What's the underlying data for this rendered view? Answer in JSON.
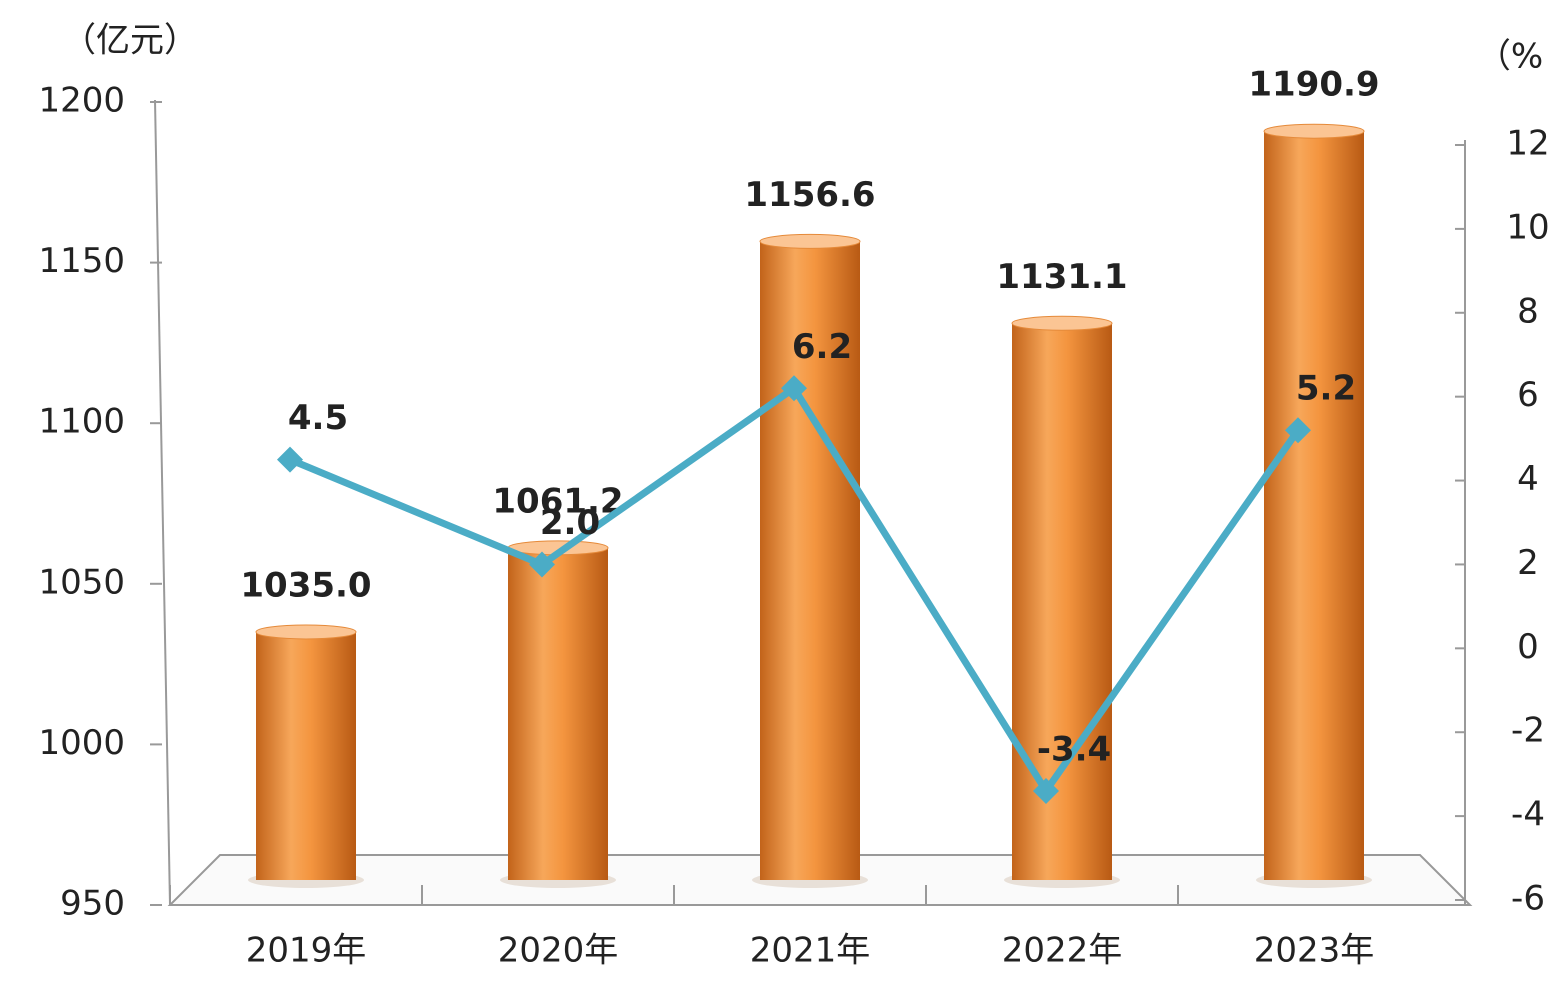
{
  "chart_data": {
    "type": "bar",
    "y_label": "（亿元）",
    "y2_label": "（%",
    "categories": [
      "2019年",
      "2020年",
      "2021年",
      "2022年",
      "2023年"
    ],
    "series": [
      {
        "color": "#f0903a",
        "values": [
          1035.0,
          1061.2,
          1156.6,
          1131.1,
          1190.9
        ],
        "value_labels": [
          "1035.0",
          "1061.2",
          "1156.6",
          "1131.1",
          "1190.9"
        ]
      },
      {
        "type": "line",
        "axis": "y2",
        "color": "#4bacc6",
        "values": [
          4.5,
          2.0,
          6.2,
          -3.4,
          5.2
        ],
        "value_labels": [
          "4.5",
          "2.0",
          "6.2",
          "-3.4",
          "5.2"
        ]
      }
    ],
    "ylim": [
      950,
      1200
    ],
    "yticks": [
      950,
      1000,
      1050,
      1100,
      1150,
      1200
    ],
    "y2lim": [
      -6,
      12
    ],
    "y2ticks": [
      -6,
      -4,
      -2,
      0,
      2,
      4,
      6,
      8,
      10,
      12
    ],
    "grid": false
  }
}
